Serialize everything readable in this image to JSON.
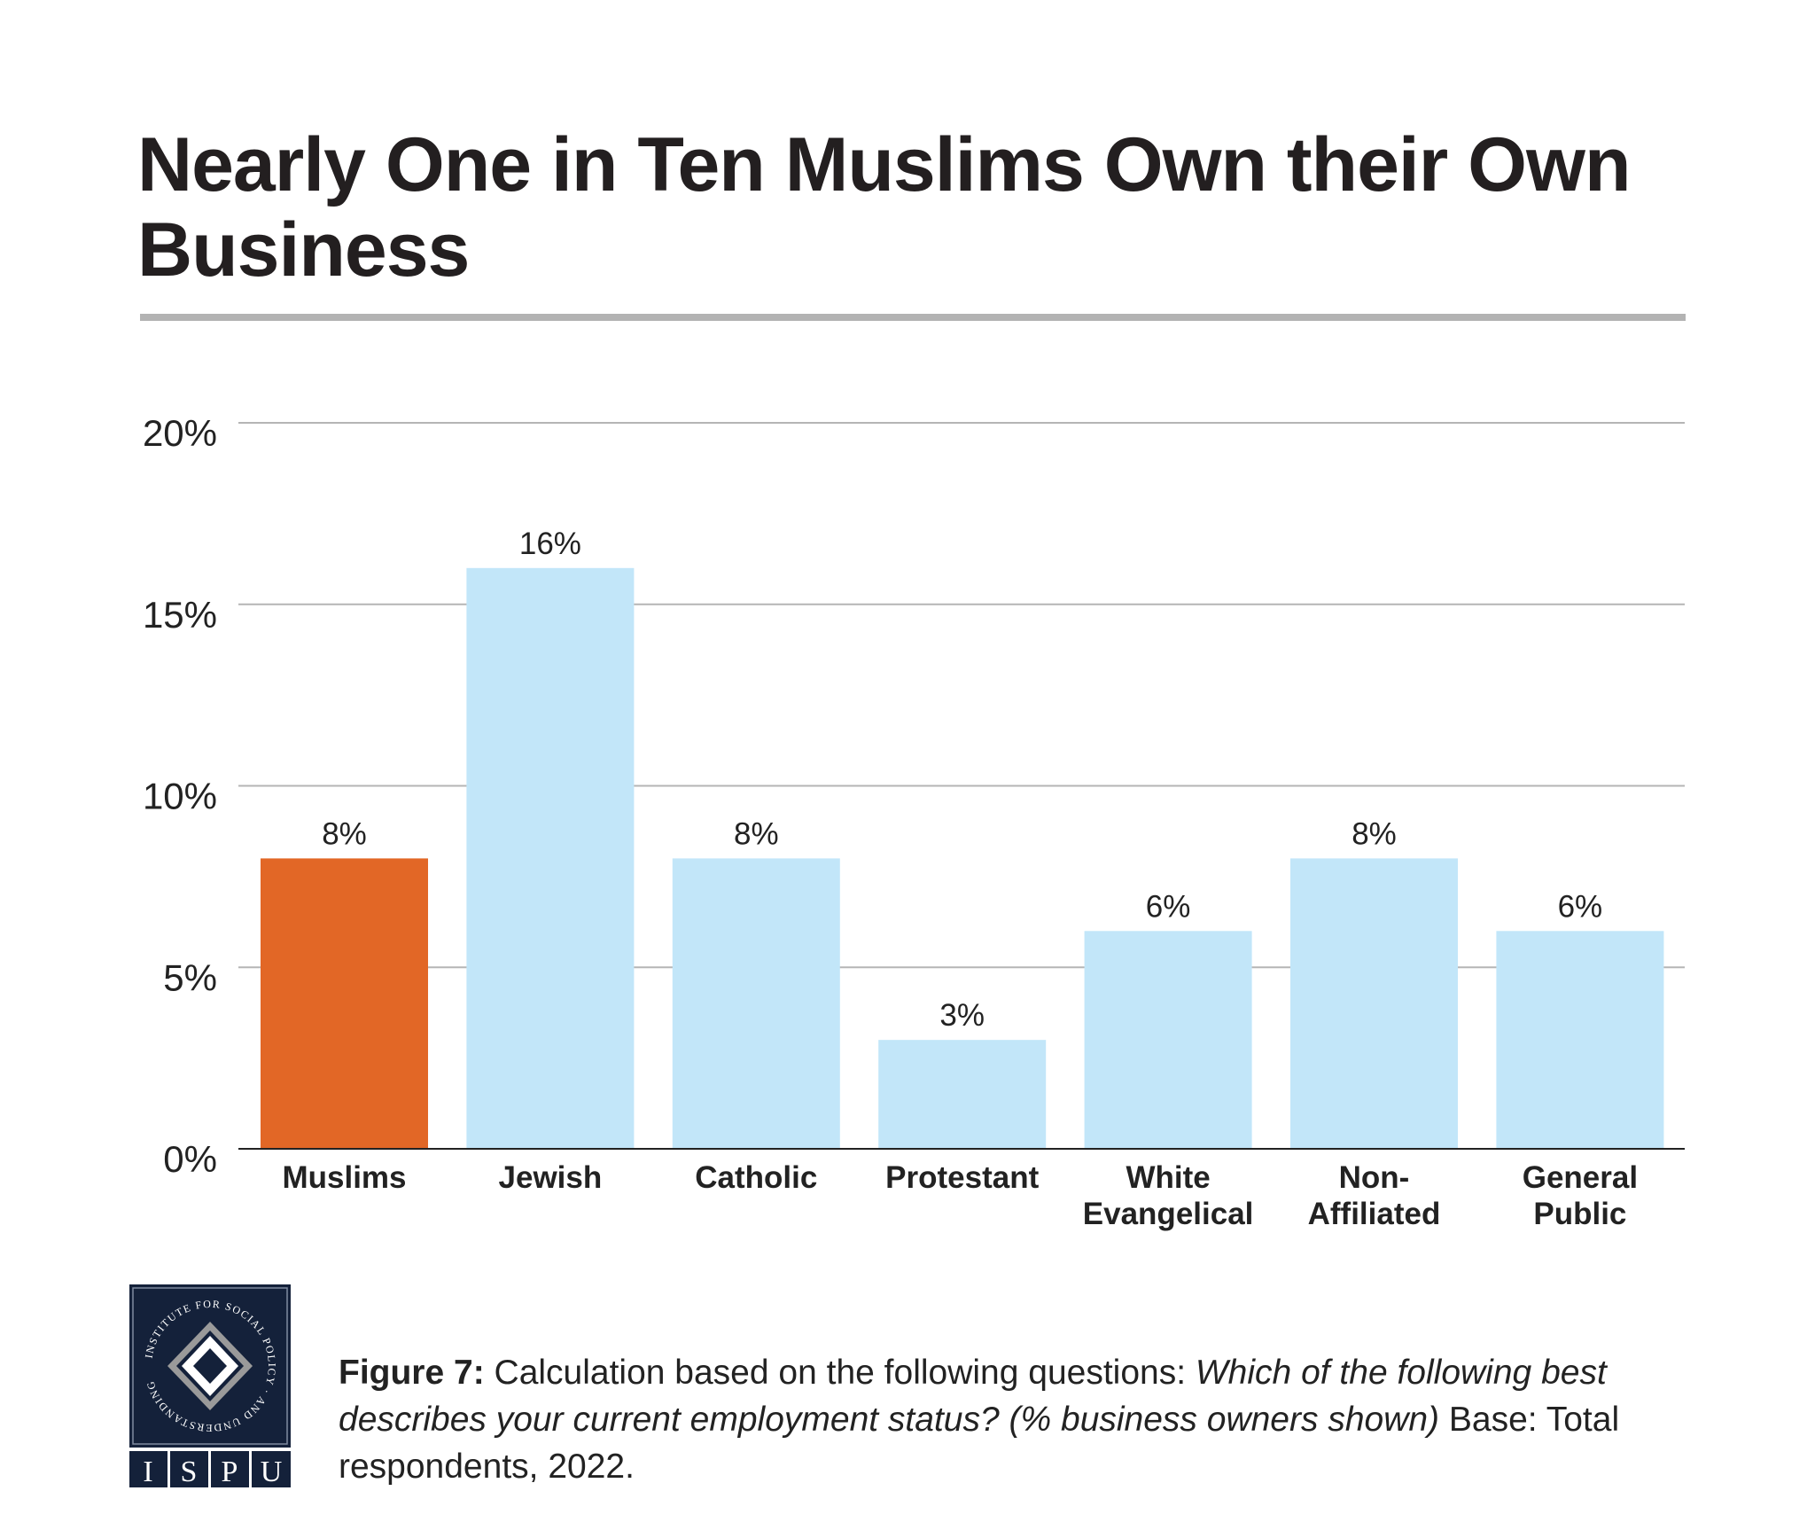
{
  "title": "Nearly One in Ten Muslims Own their Own Business",
  "chart_data": {
    "type": "bar",
    "categories": [
      "Muslims",
      "Jewish",
      "Catholic",
      "Protestant",
      "White Evangelical",
      "Non-Affiliated",
      "General Public"
    ],
    "category_lines": [
      [
        "Muslims"
      ],
      [
        "Jewish"
      ],
      [
        "Catholic"
      ],
      [
        "Protestant"
      ],
      [
        "White",
        "Evangelical"
      ],
      [
        "Non-",
        "Affiliated"
      ],
      [
        "General",
        "Public"
      ]
    ],
    "values": [
      8,
      16,
      8,
      3,
      6,
      8,
      6
    ],
    "data_labels": [
      "8%",
      "16%",
      "8%",
      "3%",
      "6%",
      "8%",
      "6%"
    ],
    "colors": [
      "#E26726",
      "#C2E6F9",
      "#C2E6F9",
      "#C2E6F9",
      "#C2E6F9",
      "#C2E6F9",
      "#C2E6F9"
    ],
    "highlight_color": "#E26726",
    "bar_color": "#C2E6F9",
    "ylim": [
      0,
      20
    ],
    "yticks": [
      0,
      5,
      10,
      15,
      20
    ],
    "ytick_labels": [
      "0%",
      "5%",
      "10%",
      "15%",
      "20%"
    ],
    "grid": true,
    "xlabel": "",
    "ylabel": ""
  },
  "caption": {
    "label": "Figure 7:",
    "text1": " Calculation based on the following questions: ",
    "question": "Which of the following best describes your current employment status? (% business owners shown)",
    "text2": " Base: Total respondents, 2022."
  },
  "logo": {
    "ring_text": "INSTITUTE FOR SOCIAL POLICY AND UNDERSTANDING",
    "letters": [
      "I",
      "S",
      "P",
      "U"
    ],
    "bg_color": "#14213a"
  }
}
